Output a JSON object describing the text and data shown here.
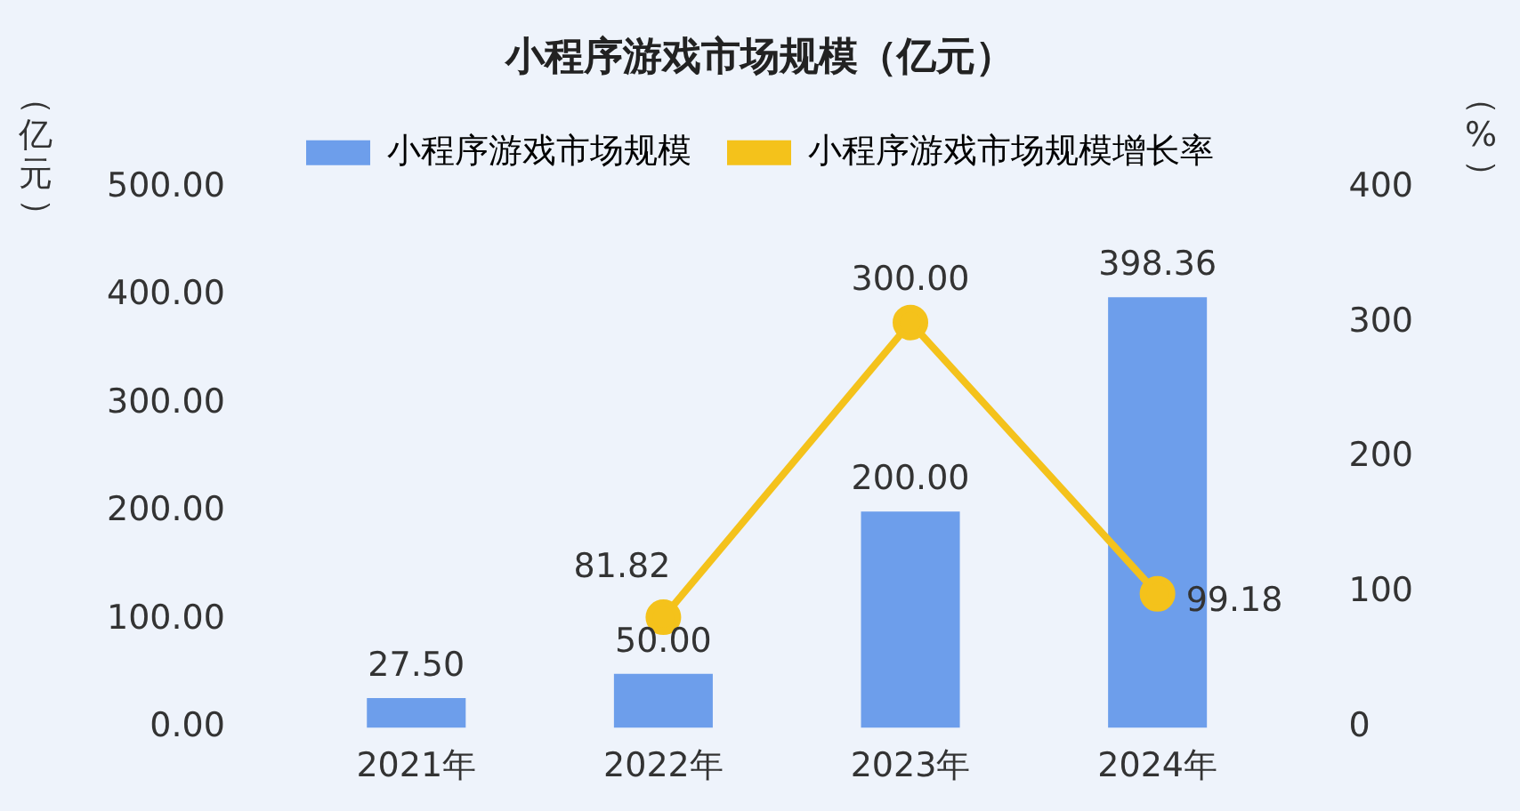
{
  "chart_data": {
    "type": "bar",
    "title": "小程序游戏市场规模（亿元）",
    "ylabel": "（亿元）",
    "y2label": "（%）",
    "categories": [
      "2021年",
      "2022年",
      "2023年",
      "2024年"
    ],
    "series": [
      {
        "name": "小程序游戏市场规模",
        "color": "#6d9eeb",
        "values": [
          27.5,
          50,
          200,
          398.36
        ],
        "value_labels": [
          "27.50",
          "50.00",
          "200.00",
          "398.36"
        ]
      },
      {
        "name": "小程序游戏市场规模增长率",
        "type": "line",
        "axis": "y2",
        "color": "#f4c21b",
        "marker": "circle",
        "values": [
          null,
          81.82,
          300,
          99.18
        ],
        "value_labels": [
          null,
          "81.82",
          "300.00",
          "99.18"
        ]
      }
    ],
    "ylim": [
      0,
      500
    ],
    "yticks": [
      {
        "value": 0,
        "label": "0.00"
      },
      {
        "value": 100,
        "label": "100.00"
      },
      {
        "value": 200,
        "label": "200.00"
      },
      {
        "value": 300,
        "label": "300.00"
      },
      {
        "value": 400,
        "label": "400.00"
      },
      {
        "value": 500,
        "label": "500.00"
      }
    ],
    "y2lim": [
      0,
      400
    ],
    "y2ticks": [
      0,
      100,
      200,
      300,
      400
    ],
    "grid": false,
    "legend": "top"
  }
}
